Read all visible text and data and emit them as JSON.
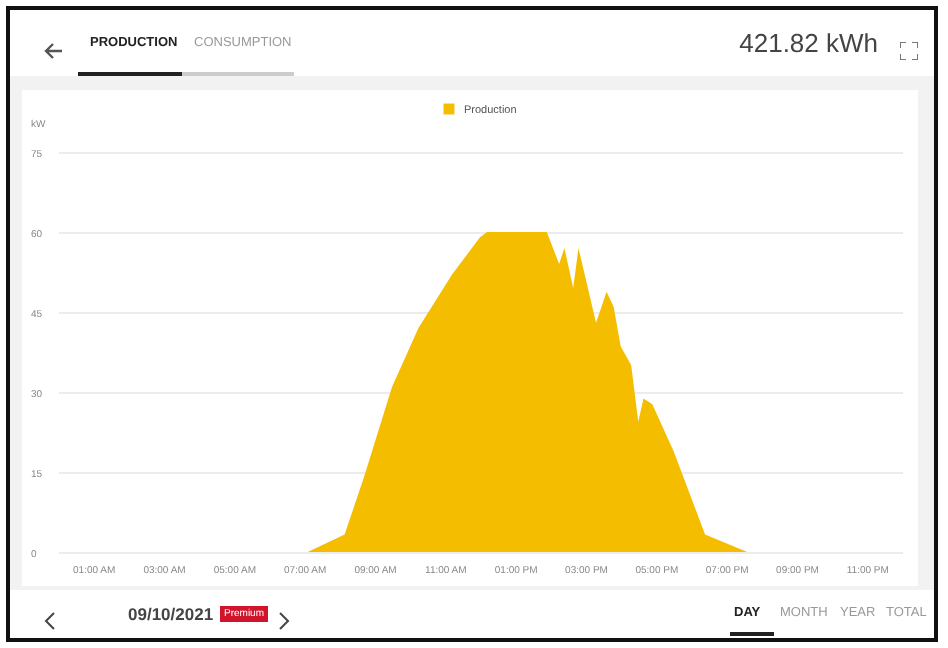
{
  "chart_data": {
    "type": "area",
    "ylabel": "kW",
    "annotations": [
      "PRODUCTION",
      "CONSUMPTION",
      "421.82 kWh",
      "09/10/2021",
      "Premium",
      "DAY",
      "MONTH",
      "YEAR",
      "TOTAL"
    ],
    "series": [
      {
        "name": "Production",
        "color": "#f5bd00",
        "x": [
          7.1,
          8.15,
          8.7,
          9.5,
          10.25,
          11.2,
          12,
          12.2,
          13.9,
          14.25,
          14.4,
          14.65,
          14.8,
          15.3,
          15.6,
          15.8,
          16,
          16.3,
          16.5,
          16.65,
          16.9,
          17.5,
          18.4,
          19.6
        ],
        "values": [
          0,
          3.3,
          14,
          31,
          42,
          52,
          59,
          60,
          60,
          54,
          57,
          49.5,
          57,
          43,
          48.8,
          46,
          38.6,
          35,
          24.4,
          28.8,
          27.7,
          19,
          3.3,
          0
        ]
      }
    ],
    "xlim": [
      0,
      24
    ],
    "xticks": [
      {
        "value": 1,
        "label": "01:00 AM"
      },
      {
        "value": 3,
        "label": "03:00 AM"
      },
      {
        "value": 5,
        "label": "05:00 AM"
      },
      {
        "value": 7,
        "label": "07:00 AM"
      },
      {
        "value": 9,
        "label": "09:00 AM"
      },
      {
        "value": 11,
        "label": "11:00 AM"
      },
      {
        "value": 13,
        "label": "01:00 PM"
      },
      {
        "value": 15,
        "label": "03:00 PM"
      },
      {
        "value": 17,
        "label": "05:00 PM"
      },
      {
        "value": 19,
        "label": "07:00 PM"
      },
      {
        "value": 21,
        "label": "09:00 PM"
      },
      {
        "value": 23,
        "label": "11:00 PM"
      }
    ],
    "ylim": [
      0,
      75
    ],
    "yticks": [
      0,
      15,
      30,
      45,
      60,
      75
    ],
    "grid": "y",
    "legend": "top"
  }
}
